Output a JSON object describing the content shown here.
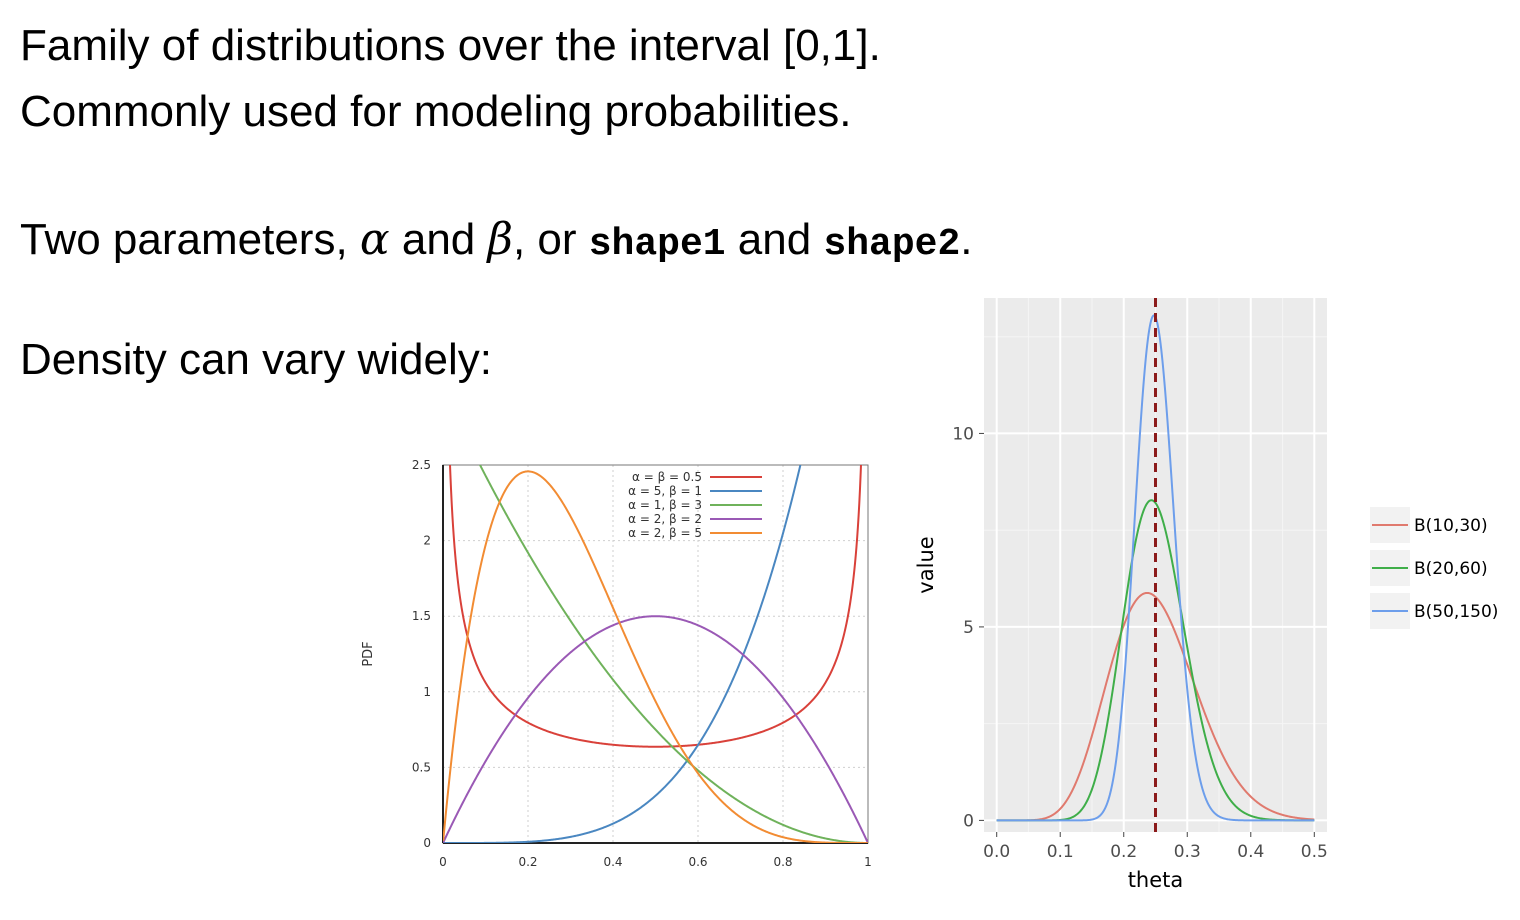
{
  "text": {
    "line1": "Family of distributions over the interval [0,1].",
    "line2": "Commonly used for modeling probabilities.",
    "line3_a": "Two parameters, ",
    "alpha": "α",
    "line3_b": " and  ",
    "beta": "β",
    "line3_c": ", or ",
    "shape1": "shape1",
    "line3_d": " and ",
    "shape2": "shape2",
    "line3_e": ".",
    "line4": "Density can vary widely:"
  },
  "chart_data": [
    {
      "type": "line",
      "ylabel": "PDF",
      "xlabel": "",
      "xlim": [
        0,
        1
      ],
      "ylim": [
        0,
        2.5
      ],
      "x_ticks": [
        "0",
        "0.2",
        "0.4",
        "0.6",
        "0.8",
        "1"
      ],
      "y_ticks": [
        "0",
        "0.5",
        "1",
        "1.5",
        "2",
        "2.5"
      ],
      "legend_position": "top",
      "series": [
        {
          "name": "α = β = 0.5",
          "alpha": 0.5,
          "beta": 0.5,
          "color": "#d9413a"
        },
        {
          "name": "α = 5, β = 1",
          "alpha": 5,
          "beta": 1,
          "color": "#4a87c1"
        },
        {
          "name": "α = 1, β = 3",
          "alpha": 1,
          "beta": 3,
          "color": "#6fb25b"
        },
        {
          "name": "α = 2, β = 2",
          "alpha": 2,
          "beta": 2,
          "color": "#9a59b5"
        },
        {
          "name": "α = 2, β = 5",
          "alpha": 2,
          "beta": 5,
          "color": "#f28c33"
        }
      ]
    },
    {
      "type": "line",
      "xlabel": "theta",
      "ylabel": "value",
      "xlim": [
        -0.02,
        0.52
      ],
      "ylim": [
        -0.3,
        13.5
      ],
      "x_ticks": [
        "0.0",
        "0.1",
        "0.2",
        "0.3",
        "0.4",
        "0.5"
      ],
      "y_ticks": [
        "0",
        "5",
        "10"
      ],
      "vline": 0.25,
      "grid": true,
      "legend_position": "right",
      "series": [
        {
          "name": "B(10,30)",
          "alpha": 10,
          "beta": 30,
          "color": "#e07a6e"
        },
        {
          "name": "B(20,60)",
          "alpha": 20,
          "beta": 60,
          "color": "#3fae49"
        },
        {
          "name": "B(50,150)",
          "alpha": 50,
          "beta": 150,
          "color": "#6d9eeb"
        }
      ]
    }
  ]
}
